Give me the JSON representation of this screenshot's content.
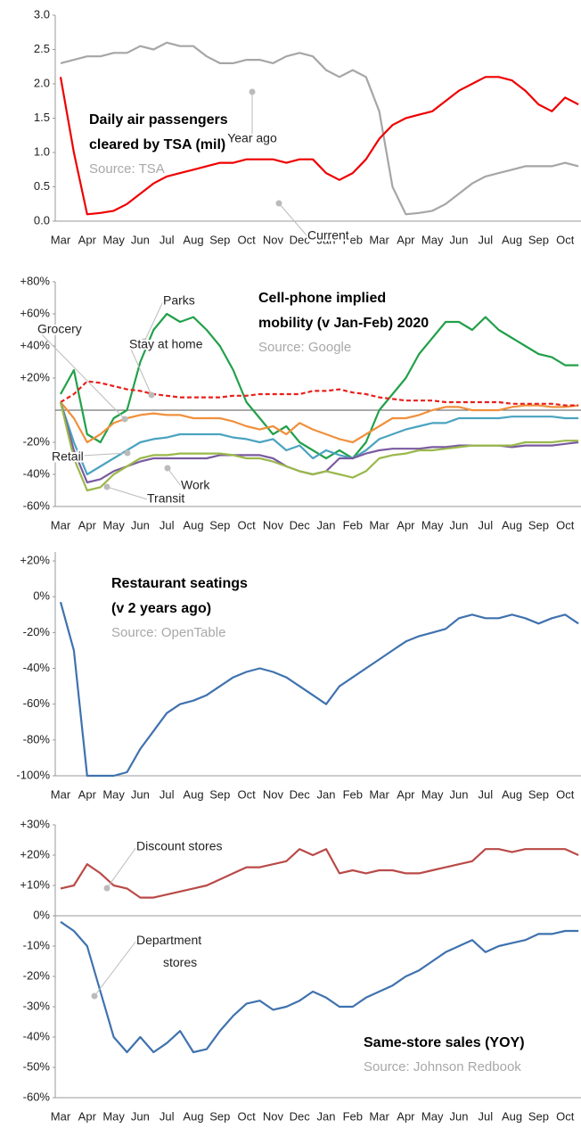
{
  "chart_data": [
    {
      "type": "line",
      "title": [
        "Daily air passengers",
        "cleared by TSA (mil)"
      ],
      "source": "Source: TSA",
      "categories": [
        "Mar",
        null,
        "Apr",
        null,
        "May",
        null,
        "Jun",
        null,
        "Jul",
        null,
        "Aug",
        null,
        "Sep",
        null,
        "Oct",
        null,
        "Nov",
        null,
        "Dec",
        null,
        "Jan",
        null,
        "Feb",
        null,
        "Mar",
        null,
        "Apr",
        null,
        "May",
        null,
        "Jun",
        null,
        "Jul",
        null,
        "Aug",
        null,
        "Sep",
        null,
        "Oct",
        null
      ],
      "ylim": [
        0,
        3
      ],
      "yticks": [
        {
          "value": 0,
          "label": "0.0"
        },
        0.5,
        {
          "value": 1,
          "label": "1.0"
        },
        1.5,
        {
          "value": 2,
          "label": "2.0"
        },
        2.5,
        {
          "value": 3,
          "label": "3.0"
        }
      ],
      "series": [
        {
          "name": "Year ago",
          "color": "#a6a6a6",
          "values": [
            2.3,
            2.35,
            2.4,
            2.4,
            2.45,
            2.45,
            2.55,
            2.5,
            2.6,
            2.55,
            2.55,
            2.4,
            2.3,
            2.3,
            2.35,
            2.35,
            2.3,
            2.4,
            2.45,
            2.4,
            2.2,
            2.1,
            2.2,
            2.1,
            1.6,
            0.5,
            0.1,
            0.12,
            0.15,
            0.25,
            0.4,
            0.55,
            0.65,
            0.7,
            0.75,
            0.8,
            0.8,
            0.8,
            0.85,
            0.8
          ]
        },
        {
          "name": "Current",
          "color": "#ee0000",
          "values": [
            2.1,
            1.0,
            0.1,
            0.12,
            0.15,
            0.25,
            0.4,
            0.55,
            0.65,
            0.7,
            0.75,
            0.8,
            0.85,
            0.85,
            0.9,
            0.9,
            0.9,
            0.85,
            0.9,
            0.9,
            0.7,
            0.6,
            0.7,
            0.9,
            1.2,
            1.4,
            1.5,
            1.55,
            1.6,
            1.75,
            1.9,
            2.0,
            2.1,
            2.1,
            2.05,
            1.9,
            1.7,
            1.6,
            1.8,
            1.7
          ]
        }
      ]
    },
    {
      "type": "line",
      "title": [
        "Cell-phone implied",
        "mobility (v Jan-Feb) 2020"
      ],
      "source": "Source: Google",
      "categories": [
        "Mar",
        null,
        "Apr",
        null,
        "May",
        null,
        "Jun",
        null,
        "Jul",
        null,
        "Aug",
        null,
        "Sep",
        null,
        "Oct",
        null,
        "Nov",
        null,
        "Dec",
        null,
        "Jan",
        null,
        "Feb",
        null,
        "Mar",
        null,
        "Apr",
        null,
        "May",
        null,
        "Jun",
        null,
        "Jul",
        null,
        "Aug",
        null,
        "Sep",
        null,
        "Oct",
        null
      ],
      "ylim": [
        -60,
        80
      ],
      "yticks": [
        {
          "value": -60,
          "label": "-60%"
        },
        {
          "value": -40,
          "label": "-40%"
        },
        {
          "value": -20,
          "label": "-20%"
        },
        {
          "value": 20,
          "label": "+20%"
        },
        {
          "value": 40,
          "label": "+40%"
        },
        {
          "value": 60,
          "label": "+60%"
        },
        {
          "value": 80,
          "label": "+80%"
        }
      ],
      "series": [
        {
          "name": "Parks",
          "color": "#22a04a",
          "values": [
            10,
            25,
            -15,
            -20,
            -5,
            0,
            30,
            50,
            60,
            55,
            58,
            50,
            40,
            25,
            5,
            -5,
            -15,
            -10,
            -20,
            -25,
            -30,
            -25,
            -30,
            -20,
            0,
            10,
            20,
            35,
            45,
            55,
            55,
            50,
            58,
            50,
            45,
            40,
            35,
            33,
            28,
            28
          ]
        },
        {
          "name": "Grocery",
          "color": "#f0903c",
          "values": [
            5,
            -5,
            -20,
            -15,
            -8,
            -5,
            -3,
            -2,
            -3,
            -3,
            -5,
            -5,
            -5,
            -7,
            -10,
            -12,
            -10,
            -15,
            -8,
            -12,
            -15,
            -18,
            -20,
            -15,
            -10,
            -5,
            -5,
            -3,
            0,
            2,
            2,
            0,
            0,
            0,
            2,
            3,
            3,
            2,
            2,
            3
          ]
        },
        {
          "name": "Stay at home",
          "color": "#e8201c",
          "dash": true,
          "values": [
            5,
            10,
            18,
            17,
            15,
            13,
            12,
            10,
            9,
            8,
            8,
            8,
            8,
            9,
            9,
            10,
            10,
            10,
            10,
            12,
            12,
            13,
            11,
            10,
            8,
            7,
            6,
            6,
            6,
            5,
            5,
            5,
            5,
            5,
            4,
            4,
            4,
            4,
            3,
            3
          ]
        },
        {
          "name": "Retail",
          "color": "#4aa3c0",
          "values": [
            5,
            -20,
            -40,
            -35,
            -30,
            -25,
            -20,
            -18,
            -17,
            -15,
            -15,
            -15,
            -15,
            -17,
            -18,
            -20,
            -18,
            -25,
            -22,
            -30,
            -25,
            -28,
            -30,
            -25,
            -18,
            -15,
            -12,
            -10,
            -8,
            -8,
            -5,
            -5,
            -5,
            -5,
            -4,
            -4,
            -4,
            -4,
            -5,
            -5
          ]
        },
        {
          "name": "Work",
          "color": "#7a5aa0",
          "values": [
            5,
            -25,
            -45,
            -43,
            -38,
            -35,
            -32,
            -30,
            -30,
            -30,
            -30,
            -30,
            -28,
            -28,
            -28,
            -28,
            -30,
            -35,
            -38,
            -40,
            -38,
            -30,
            -30,
            -27,
            -25,
            -24,
            -24,
            -24,
            -23,
            -23,
            -22,
            -22,
            -22,
            -22,
            -23,
            -22,
            -22,
            -22,
            -21,
            -20
          ]
        },
        {
          "name": "Transit",
          "color": "#9ab84a",
          "values": [
            5,
            -30,
            -50,
            -48,
            -40,
            -35,
            -30,
            -28,
            -28,
            -27,
            -27,
            -27,
            -27,
            -28,
            -30,
            -30,
            -32,
            -35,
            -38,
            -40,
            -38,
            -40,
            -42,
            -38,
            -30,
            -28,
            -27,
            -25,
            -25,
            -24,
            -23,
            -22,
            -22,
            -22,
            -22,
            -20,
            -20,
            -20,
            -19,
            -19
          ]
        }
      ]
    },
    {
      "type": "line",
      "title": [
        "Restaurant seatings",
        "(v 2 years ago)"
      ],
      "source": "Source: OpenTable",
      "categories": [
        "Mar",
        null,
        "Apr",
        null,
        "May",
        null,
        "Jun",
        null,
        "Jul",
        null,
        "Aug",
        null,
        "Sep",
        null,
        "Oct",
        null,
        "Nov",
        null,
        "Dec",
        null,
        "Jan",
        null,
        "Feb",
        null,
        "Mar",
        null,
        "Apr",
        null,
        "May",
        null,
        "Jun",
        null,
        "Jul",
        null,
        "Aug",
        null,
        "Sep",
        null,
        "Oct",
        null
      ],
      "ylim": [
        -100,
        25
      ],
      "yticks": [
        {
          "value": -100,
          "label": "-100%"
        },
        {
          "value": -80,
          "label": "-80%"
        },
        {
          "value": -60,
          "label": "-60%"
        },
        {
          "value": -40,
          "label": "-40%"
        },
        {
          "value": -20,
          "label": "-20%"
        },
        {
          "value": 0,
          "label": "0%"
        },
        {
          "value": 20,
          "label": "+20%"
        }
      ],
      "series": [
        {
          "name": "Restaurant seatings",
          "color": "#3f72ae",
          "values": [
            -3,
            -30,
            -100,
            -100,
            -100,
            -98,
            -85,
            -75,
            -65,
            -60,
            -58,
            -55,
            -50,
            -45,
            -42,
            -40,
            -42,
            -45,
            -50,
            -55,
            -60,
            -50,
            -45,
            -40,
            -35,
            -30,
            -25,
            -22,
            -20,
            -18,
            -12,
            -10,
            -12,
            -12,
            -10,
            -12,
            -15,
            -12,
            -10,
            -15
          ]
        }
      ]
    },
    {
      "type": "line",
      "title": [
        "Same-store sales (YOY)"
      ],
      "source": "Source: Johnson Redbook",
      "categories": [
        "Mar",
        null,
        "Apr",
        null,
        "May",
        null,
        "Jun",
        null,
        "Jul",
        null,
        "Aug",
        null,
        "Sep",
        null,
        "Oct",
        null,
        "Nov",
        null,
        "Dec",
        null,
        "Jan",
        null,
        "Feb",
        null,
        "Mar",
        null,
        "Apr",
        null,
        "May",
        null,
        "Jun",
        null,
        "Jul",
        null,
        "Aug",
        null,
        "Sep",
        null,
        "Oct",
        null
      ],
      "ylim": [
        -60,
        30
      ],
      "yticks": [
        {
          "value": -60,
          "label": "-60%"
        },
        {
          "value": -50,
          "label": "-50%"
        },
        {
          "value": -40,
          "label": "-40%"
        },
        {
          "value": -30,
          "label": "-30%"
        },
        {
          "value": -20,
          "label": "-20%"
        },
        {
          "value": -10,
          "label": "-10%"
        },
        {
          "value": 0,
          "label": "0%"
        },
        {
          "value": 10,
          "label": "+10%"
        },
        {
          "value": 20,
          "label": "+20%"
        },
        {
          "value": 30,
          "label": "+30%"
        }
      ],
      "series": [
        {
          "name": "Discount stores",
          "color": "#b94a48",
          "values": [
            9,
            10,
            17,
            14,
            10,
            9,
            6,
            6,
            7,
            8,
            9,
            10,
            12,
            14,
            16,
            16,
            17,
            18,
            22,
            20,
            22,
            14,
            15,
            14,
            15,
            15,
            14,
            14,
            15,
            16,
            17,
            18,
            22,
            22,
            21,
            22,
            22,
            22,
            22,
            20
          ]
        },
        {
          "name": "Department stores",
          "color": "#3f72ae",
          "values": [
            -2,
            -5,
            -10,
            -25,
            -40,
            -45,
            -40,
            -45,
            -42,
            -38,
            -45,
            -44,
            -38,
            -33,
            -29,
            -28,
            -31,
            -30,
            -28,
            -25,
            -27,
            -30,
            -30,
            -27,
            -25,
            -23,
            -20,
            -18,
            -15,
            -12,
            -10,
            -8,
            -12,
            -10,
            -9,
            -8,
            -6,
            -6,
            -5,
            -5
          ]
        }
      ]
    }
  ]
}
